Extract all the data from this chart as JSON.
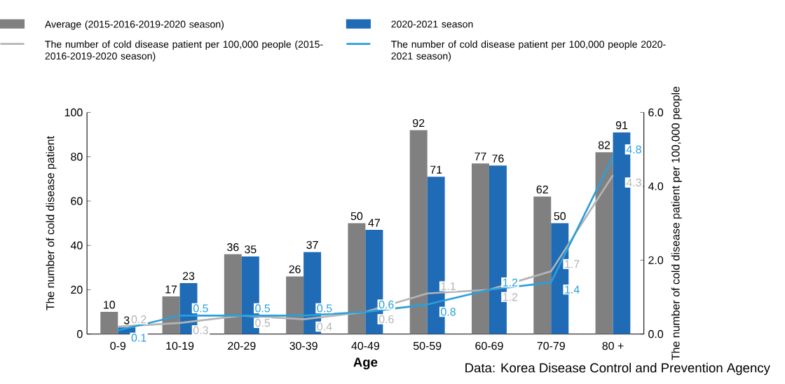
{
  "chart_data": {
    "type": "bar",
    "categories": [
      "0-9",
      "10-19",
      "20-29",
      "30-39",
      "40-49",
      "50-59",
      "60-69",
      "70-79",
      "80 +"
    ],
    "series": [
      {
        "name": "Average (2015-2016-2019-2020 season)",
        "color": "#808080",
        "values": [
          10,
          17,
          36,
          26,
          50,
          92,
          77,
          62,
          82
        ]
      },
      {
        "name": "2020-2021 season",
        "color": "#1f6bb5",
        "values": [
          3,
          23,
          35,
          37,
          47,
          71,
          76,
          50,
          91
        ]
      },
      {
        "name": "The number of cold disease patient per 100,000 people (2015-2016-2019-2020 season)",
        "type": "line",
        "axis": "y2",
        "color": "#b4b4b4",
        "values": [
          0.2,
          0.3,
          0.5,
          0.4,
          0.6,
          1.1,
          1.2,
          1.7,
          4.3
        ]
      },
      {
        "name": "The number of cold disease patient per 100,000 people 2020-2021 season)",
        "type": "line",
        "axis": "y2",
        "color": "#2a9fdc",
        "values": [
          0.1,
          0.5,
          0.5,
          0.5,
          0.6,
          0.8,
          1.2,
          1.4,
          4.8
        ]
      }
    ],
    "xlabel": "Age",
    "ylabel": "The number of cold disease patient",
    "y2label": "The number of cold disease patient per 100,000 people",
    "ylim": [
      0,
      100
    ],
    "yticks": [
      0,
      20,
      40,
      60,
      80,
      100
    ],
    "y2lim": [
      0,
      6
    ],
    "y2ticks": [
      {
        "value": 0,
        "label": "0.0"
      },
      {
        "value": 2,
        "label": "2.0"
      },
      {
        "value": 4,
        "label": "4.0"
      },
      {
        "value": 6,
        "label": "6.0"
      }
    ],
    "data_labels": true,
    "legend": "top",
    "grid": false,
    "annotations": [
      "Data: Korea Disease Control and Prevention Agency"
    ]
  }
}
